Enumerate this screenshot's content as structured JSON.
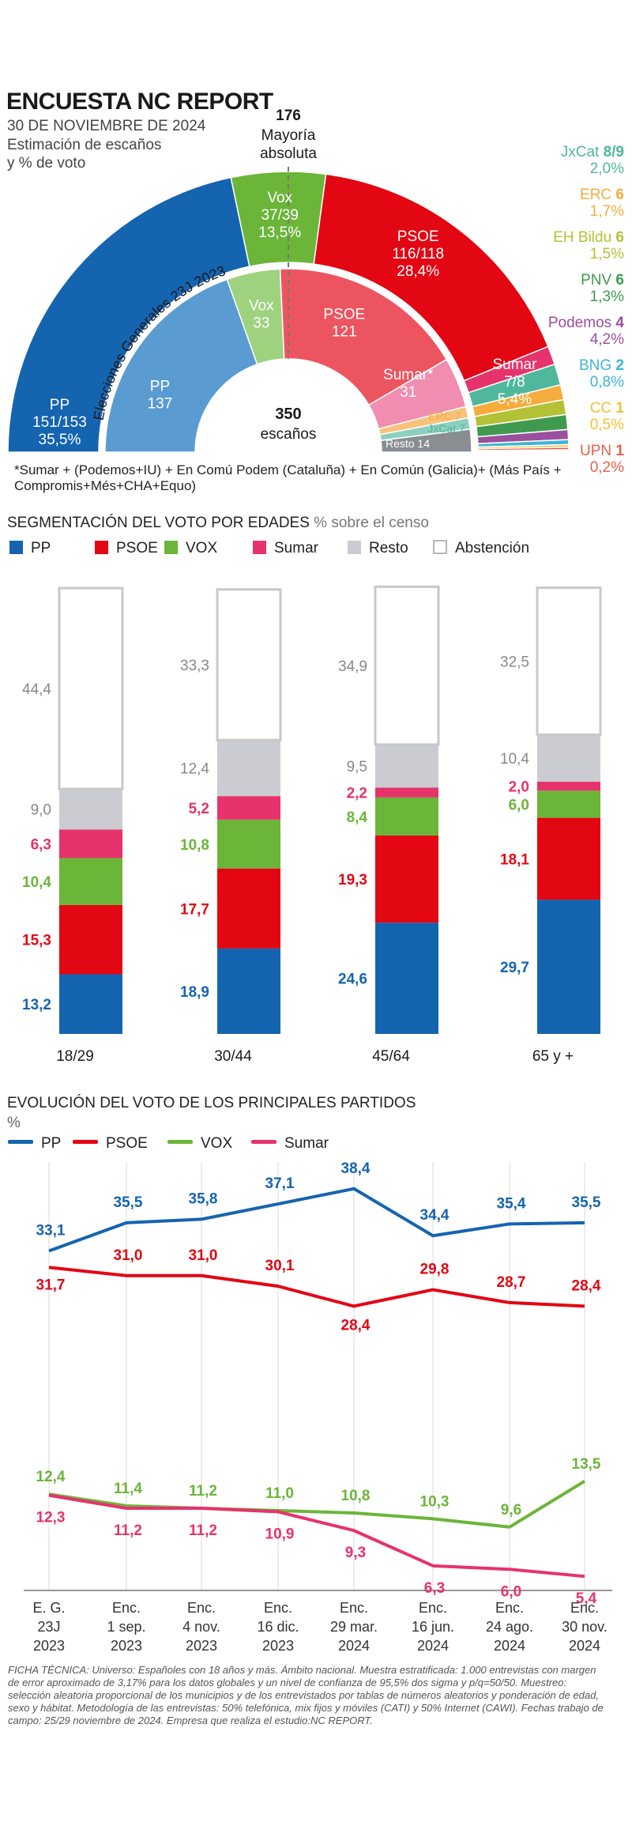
{
  "header": {
    "title": "ENCUESTA NC REPORT",
    "date": "30 DE NOVIEMBRE DE 2024",
    "subtitle_line1": "Estimación de escaños",
    "subtitle_line2": "y % de voto"
  },
  "colors": {
    "PP": "#1564b0",
    "PSOE": "#e30613",
    "VOX": "#6bb539",
    "Sumar": "#e6336b",
    "Resto": "#cbcbd2",
    "PP_light": "#5a9bd1",
    "PSOE_light": "#ec5560",
    "VOX_light": "#9fd27f",
    "Sumar_light": "#f08db0"
  },
  "chart_data": [
    {
      "type": "pie",
      "title": "Estimación de escaños y % de voto",
      "majority": {
        "value": "176",
        "label_line1": "Mayoría",
        "label_line2": "absoluta"
      },
      "series": [
        {
          "name": "PP",
          "label": "PP",
          "seats": "151/153",
          "pct": "35,5%",
          "seats_mid": 152,
          "color": "#1564b0"
        },
        {
          "name": "Vox",
          "label": "Vox",
          "seats": "37/39",
          "pct": "13,5%",
          "seats_mid": 38,
          "color": "#6bb539"
        },
        {
          "name": "PSOE",
          "label": "PSOE",
          "seats": "116/118",
          "pct": "28,4%",
          "seats_mid": 117,
          "color": "#e30613"
        },
        {
          "name": "Sumar",
          "label": "Sumar",
          "seats": "7/8",
          "pct": "5,4%",
          "seats_mid": 7.5,
          "color": "#e6336b"
        },
        {
          "name": "JxCat",
          "label": "JxCat",
          "seats": "8/9",
          "pct": "2,0%",
          "seats_mid": 8.5,
          "color": "#4fb79b"
        },
        {
          "name": "ERC",
          "label": "ERC",
          "seats": "6",
          "pct": "1,7%",
          "seats_mid": 6,
          "color": "#f4ac3c"
        },
        {
          "name": "EH Bildu",
          "label": "EH Bildu",
          "seats": "6",
          "pct": "1,5%",
          "seats_mid": 6,
          "color": "#b3c135"
        },
        {
          "name": "PNV",
          "label": "PNV",
          "seats": "6",
          "pct": "1,3%",
          "seats_mid": 6,
          "color": "#3f9a4f"
        },
        {
          "name": "Podemos",
          "label": "Podemos",
          "seats": "4",
          "pct": "4,2%",
          "seats_mid": 4,
          "color": "#9b4f9e"
        },
        {
          "name": "BNG",
          "label": "BNG",
          "seats": "2",
          "pct": "0,8%",
          "seats_mid": 2,
          "color": "#3cb6d8"
        },
        {
          "name": "CC",
          "label": "CC",
          "seats": "1",
          "pct": "0,5%",
          "seats_mid": 1,
          "color": "#f2c234"
        },
        {
          "name": "UPN",
          "label": "UPN",
          "seats": "1",
          "pct": "0,2%",
          "seats_mid": 1,
          "color": "#e8604c"
        }
      ],
      "previous": {
        "label": "Elecciones Generales 23J 2023",
        "total_label": "escaños",
        "total": "350",
        "series": [
          {
            "name": "PP",
            "seats": 137,
            "color": "#5a9bd1"
          },
          {
            "name": "Vox",
            "seats": 33,
            "color": "#9fd27f"
          },
          {
            "name": "PSOE",
            "seats": 121,
            "color": "#ec5560"
          },
          {
            "name": "Sumar*",
            "seats": 31,
            "color": "#f08db0"
          },
          {
            "name": "ERC",
            "seats": 7,
            "color": "#f7c27b"
          },
          {
            "name": "JxCat",
            "seats": 7,
            "color": "#8dd0bf"
          },
          {
            "name": "Resto",
            "seats": 14,
            "color": "#8a8d92"
          }
        ],
        "labels": {
          "erc": "ERC 7",
          "jxcat": "JxCat 7",
          "resto": "Resto 14"
        }
      },
      "note": "*Sumar + (Podemos+IU) + En Comú Podem (Cataluña) + En Común (Galicia)+ (Más País + Compromis+Més+CHA+Equo)"
    },
    {
      "type": "bar",
      "title": "SEGMENTACIÓN DEL VOTO POR EDADES",
      "subtitle": "% sobre el censo",
      "legend": [
        "PP",
        "PSOE",
        "VOX",
        "Sumar",
        "Resto",
        "Abstención"
      ],
      "categories": [
        "18/29",
        "30/44",
        "45/64",
        "65 y +"
      ],
      "series": [
        {
          "name": "PP",
          "values": [
            13.2,
            18.9,
            24.6,
            29.7
          ],
          "labels": [
            "13,2",
            "18,9",
            "24,6",
            "29,7"
          ],
          "color": "#1564b0"
        },
        {
          "name": "PSOE",
          "values": [
            15.3,
            17.7,
            19.3,
            18.1
          ],
          "labels": [
            "15,3",
            "17,7",
            "19,3",
            "18,1"
          ],
          "color": "#e30613"
        },
        {
          "name": "VOX",
          "values": [
            10.4,
            10.8,
            8.4,
            6.0
          ],
          "labels": [
            "10,4",
            "10,8",
            "8,4",
            "6,0"
          ],
          "color": "#6bb539"
        },
        {
          "name": "Sumar",
          "values": [
            6.3,
            5.2,
            2.2,
            2.0
          ],
          "labels": [
            "6,3",
            "5,2",
            "2,2",
            "2,0"
          ],
          "color": "#e6336b"
        },
        {
          "name": "Resto",
          "values": [
            9.0,
            12.4,
            9.5,
            10.4
          ],
          "labels": [
            "9,0",
            "12,4",
            "9,5",
            "10,4"
          ],
          "color": "#cbcbd2"
        },
        {
          "name": "Abstención",
          "values": [
            44.4,
            33.3,
            34.9,
            32.5
          ],
          "labels": [
            "44,4",
            "33,3",
            "34,9",
            "32,5"
          ],
          "color": "#ffffff"
        }
      ]
    },
    {
      "type": "line",
      "title": "EVOLUCIÓN DEL VOTO DE LOS PRINCIPALES PARTIDOS",
      "ylabel": "%",
      "ylim": [
        4,
        40
      ],
      "x": [
        {
          "line1": "E. G.",
          "line2": "23J",
          "line3": "2023"
        },
        {
          "line1": "Enc.",
          "line2": "1 sep.",
          "line3": "2023"
        },
        {
          "line1": "Enc.",
          "line2": "4 nov.",
          "line3": "2023"
        },
        {
          "line1": "Enc.",
          "line2": "16 dic.",
          "line3": "2023"
        },
        {
          "line1": "Enc.",
          "line2": "29 mar.",
          "line3": "2024"
        },
        {
          "line1": "Enc.",
          "line2": "16 jun.",
          "line3": "2024"
        },
        {
          "line1": "Enc.",
          "line2": "24 ago.",
          "line3": "2024"
        },
        {
          "line1": "Enc.",
          "line2": "30 nov.",
          "line3": "2024"
        }
      ],
      "series": [
        {
          "name": "PP",
          "values": [
            33.1,
            35.5,
            35.8,
            37.1,
            38.4,
            34.4,
            35.4,
            35.5
          ],
          "labels": [
            "33,1",
            "35,5",
            "35,8",
            "37,1",
            "38,4",
            "34,4",
            "35,4",
            "35,5"
          ],
          "color": "#1564b0"
        },
        {
          "name": "PSOE",
          "values": [
            31.7,
            31.0,
            31.0,
            30.1,
            28.4,
            29.8,
            28.7,
            28.4
          ],
          "labels": [
            "31,7",
            "31,0",
            "31,0",
            "30,1",
            "28,4",
            "29,8",
            "28,7",
            "28,4"
          ],
          "color": "#e30613"
        },
        {
          "name": "VOX",
          "values": [
            12.4,
            11.4,
            11.2,
            11.0,
            10.8,
            10.3,
            9.6,
            13.5
          ],
          "labels": [
            "12,4",
            "11,4",
            "11,2",
            "11,0",
            "10,8",
            "10,3",
            "9,6",
            "13,5"
          ],
          "color": "#6bb539"
        },
        {
          "name": "Sumar",
          "values": [
            12.3,
            11.2,
            11.2,
            10.9,
            9.3,
            6.3,
            6.0,
            5.4
          ],
          "labels": [
            "12,3",
            "11,2",
            "11,2",
            "10,9",
            "9,3",
            "6,3",
            "6,0",
            "5,4"
          ],
          "color": "#e6336b"
        }
      ]
    }
  ],
  "footer": "FICHA TÉCNICA: Universo: Españoles con 18 años y más. Ámbito nacional. Muestra estratificada: 1.000 entrevistas con margen de error aproximado de 3,17% para los datos globales y un nivel de confianza de 95,5% dos sigma y p/q=50/50. Muestreo: selección aleatoria proporcional de los municipios y de los entrevistados por tablas de números aleatorios y ponderación de edad, sexo y hábitat. Metodología de las entrevistas: 50% telefónica, mix fijos y móviles (CATI) y 50% Internet (CAWI). Fechas trabajo de campo: 25/29 noviembre de 2024. Empresa que realiza el estudio:NC REPORT."
}
